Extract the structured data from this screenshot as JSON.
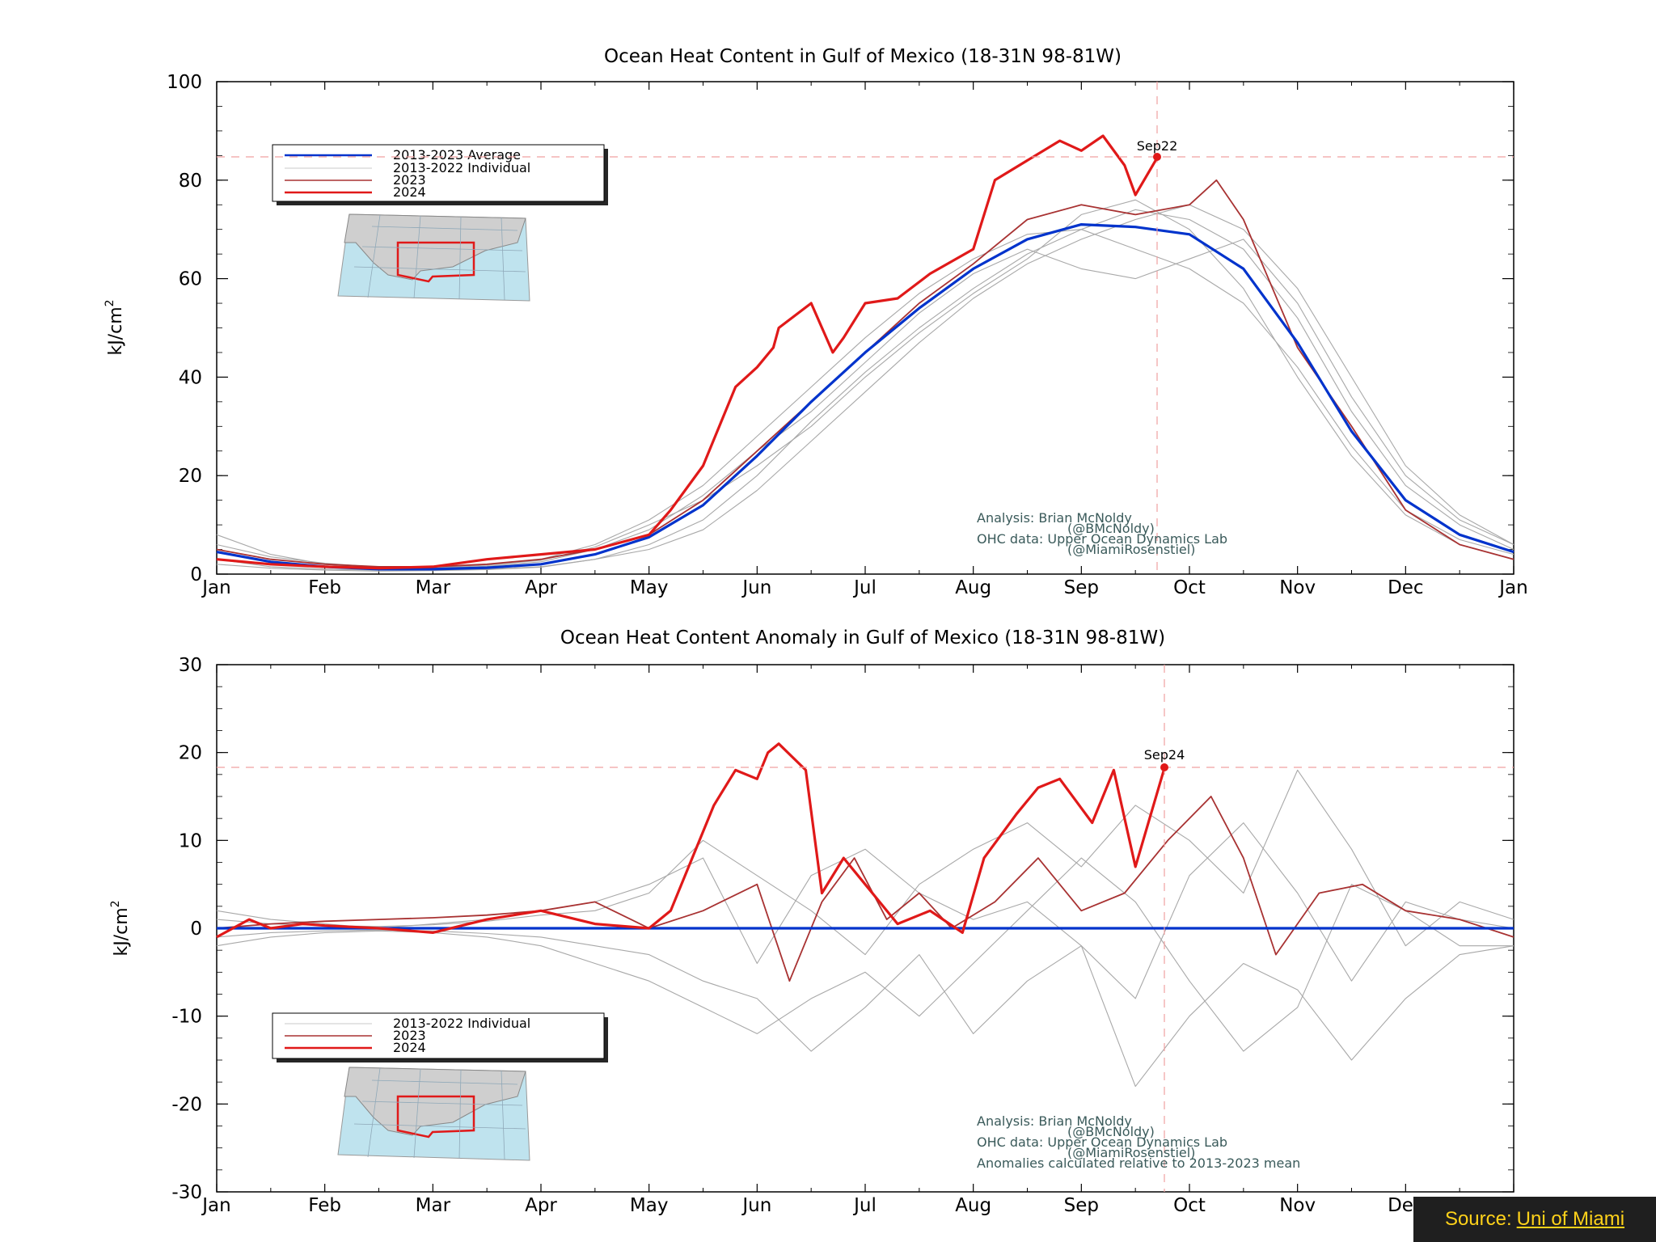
{
  "colors": {
    "average": "#0033cc",
    "individual": "#a8a8a8",
    "y2023": "#a83232",
    "y2024": "#e01919",
    "ref": "#f0a0a0"
  },
  "source": {
    "label": "Source:",
    "link": "Uni of Miami"
  },
  "chart_data": [
    {
      "type": "line",
      "title": "Ocean Heat Content in Gulf of Mexico (18-31N 98-81W)",
      "ylabel": "kJ/cm",
      "ylabel_sup": "2",
      "ylim": [
        0,
        100
      ],
      "yticks": [
        "0",
        "20",
        "40",
        "60",
        "80",
        "100"
      ],
      "xticks": [
        "Jan",
        "Feb",
        "Mar",
        "Apr",
        "May",
        "Jun",
        "Jul",
        "Aug",
        "Sep",
        "Oct",
        "Nov",
        "Dec",
        "Jan"
      ],
      "legend": {
        "placement": "upper-left",
        "entries": [
          "2013-2023 Average",
          "2013-2022 Individual",
          "2023",
          "2024"
        ]
      },
      "marker": {
        "label": "Sep22",
        "x": 8.7,
        "y": 84.5
      },
      "annotation": [
        "Analysis: Brian McNoldy",
        "(@BMcNoldy)",
        "OHC data: Upper Ocean Dynamics Lab",
        "(@MiamiRosenstiel)"
      ],
      "grid": false,
      "series": [
        {
          "name": "2013-2023 Average",
          "style": "average",
          "x": [
            0,
            0.5,
            1,
            1.5,
            2,
            2.5,
            3,
            3.5,
            4,
            4.5,
            5,
            5.5,
            6,
            6.5,
            7,
            7.5,
            8,
            8.5,
            9,
            9.5,
            10,
            10.5,
            11,
            11.5,
            12
          ],
          "y": [
            4.5,
            2.5,
            1.5,
            1.0,
            1.0,
            1.3,
            2.0,
            4.0,
            7.5,
            14,
            24,
            35,
            45,
            54,
            62,
            68,
            71,
            70.5,
            69,
            62,
            47,
            29,
            15,
            8,
            4.5
          ]
        },
        {
          "name": "2013-2022 Individual",
          "style": "individual",
          "x": [
            0,
            0.5,
            1,
            1.5,
            2,
            2.5,
            3,
            3.5,
            4,
            4.5,
            5,
            5.5,
            6,
            6.5,
            7,
            7.5,
            8,
            8.5,
            9,
            9.5,
            10,
            10.5,
            11,
            11.5,
            12
          ],
          "y": [
            8,
            4,
            2,
            1.5,
            1.5,
            2,
            3,
            6,
            11,
            18,
            28,
            38,
            48,
            57,
            64,
            69,
            70,
            66,
            62,
            55,
            42,
            26,
            13,
            7,
            4
          ]
        },
        {
          "name": "2013-2022 Individual",
          "style": "individual",
          "x": [
            0,
            0.5,
            1,
            1.5,
            2,
            2.5,
            3,
            3.5,
            4,
            4.5,
            5,
            5.5,
            6,
            6.5,
            7,
            7.5,
            8,
            8.5,
            9,
            9.5,
            10,
            10.5,
            11,
            11.5,
            12
          ],
          "y": [
            3,
            1.5,
            1,
            0.8,
            0.8,
            1,
            1.5,
            3,
            6,
            11,
            20,
            31,
            41,
            50,
            58,
            65,
            70,
            74,
            72,
            66,
            52,
            33,
            18,
            10,
            5
          ]
        },
        {
          "name": "2013-2022 Individual",
          "style": "individual",
          "x": [
            0,
            0.5,
            1,
            1.5,
            2,
            2.5,
            3,
            3.5,
            4,
            4.5,
            5,
            5.5,
            6,
            6.5,
            7,
            7.5,
            8,
            8.5,
            9,
            9.5,
            10,
            10.5,
            11,
            11.5,
            12
          ],
          "y": [
            5,
            3,
            2,
            1.2,
            1.2,
            1.6,
            2.5,
            5,
            9,
            16,
            25,
            33,
            43,
            53,
            61,
            66,
            62,
            60,
            64,
            68,
            55,
            36,
            20,
            11,
            6
          ]
        },
        {
          "name": "2013-2022 Individual",
          "style": "individual",
          "x": [
            0,
            0.5,
            1,
            1.5,
            2,
            2.5,
            3,
            3.5,
            4,
            4.5,
            5,
            5.5,
            6,
            6.5,
            7,
            7.5,
            8,
            8.5,
            9,
            9.5,
            10,
            10.5,
            11,
            11.5,
            12
          ],
          "y": [
            6,
            3.5,
            2.2,
            1.4,
            1.3,
            1.8,
            2.8,
            5.5,
            10,
            15,
            22,
            30,
            40,
            49,
            57,
            64,
            73,
            76,
            70,
            58,
            40,
            24,
            12,
            6,
            3
          ]
        },
        {
          "name": "2013-2022 Individual",
          "style": "individual",
          "x": [
            0,
            0.5,
            1,
            1.5,
            2,
            2.5,
            3,
            3.5,
            4,
            4.5,
            5,
            5.5,
            6,
            6.5,
            7,
            7.5,
            8,
            8.5,
            9,
            9.5,
            10,
            10.5,
            11,
            11.5,
            12
          ],
          "y": [
            2,
            1.2,
            0.8,
            0.6,
            0.7,
            0.9,
            1.4,
            3,
            5,
            9,
            17,
            27,
            37,
            47,
            56,
            63,
            68,
            72,
            75,
            70,
            58,
            40,
            22,
            12,
            6
          ]
        },
        {
          "name": "2023",
          "style": "y2023",
          "x": [
            0,
            0.5,
            1,
            1.5,
            2,
            2.5,
            3,
            3.5,
            4,
            4.5,
            5,
            5.5,
            6,
            6.5,
            7,
            7.5,
            8,
            8.5,
            9,
            9.25,
            9.5,
            10,
            10.5,
            11,
            11.5,
            12
          ],
          "y": [
            5,
            3,
            2,
            1.5,
            1.5,
            2,
            3,
            5,
            8,
            15,
            25,
            35,
            45,
            55,
            63,
            72,
            75,
            73,
            75,
            80,
            72,
            46,
            30,
            13,
            6,
            3
          ]
        },
        {
          "name": "2024",
          "style": "y2024",
          "x": [
            0,
            0.5,
            1,
            1.5,
            2,
            2.5,
            3,
            3.5,
            4,
            4.2,
            4.5,
            4.8,
            5,
            5.15,
            5.2,
            5.5,
            5.7,
            5.8,
            6,
            6.3,
            6.6,
            7,
            7.2,
            7.5,
            7.8,
            8,
            8.2,
            8.4,
            8.5,
            8.7
          ],
          "y": [
            3,
            2,
            1.5,
            1.2,
            1.5,
            3,
            4,
            5,
            8,
            13,
            22,
            38,
            42,
            46,
            50,
            55,
            45,
            48,
            55,
            56,
            61,
            66,
            80,
            84,
            88,
            86,
            89,
            83,
            77,
            84.5
          ]
        }
      ]
    },
    {
      "type": "line",
      "title": "Ocean Heat Content Anomaly in Gulf of Mexico (18-31N 98-81W)",
      "ylabel": "kJ/cm",
      "ylabel_sup": "2",
      "ylim": [
        -30,
        30
      ],
      "yticks": [
        "-30",
        "-20",
        "-10",
        "0",
        "10",
        "20",
        "30"
      ],
      "xticks": [
        "Jan",
        "Feb",
        "Mar",
        "Apr",
        "May",
        "Jun",
        "Jul",
        "Aug",
        "Sep",
        "Oct",
        "Nov",
        "Dec",
        "Jan"
      ],
      "legend": {
        "placement": "lower-left",
        "entries": [
          "2013-2022 Individual",
          "2023",
          "2024"
        ]
      },
      "marker": {
        "label": "Sep24",
        "x": 8.77,
        "y": 18.3
      },
      "annotation": [
        "Analysis: Brian McNoldy",
        "(@BMcNoldy)",
        "OHC data: Upper Ocean Dynamics Lab",
        "(@MiamiRosenstiel)",
        "Anomalies calculated relative to 2013-2023 mean"
      ],
      "grid": false,
      "series": [
        {
          "name": "zero",
          "style": "average",
          "x": [
            0,
            12
          ],
          "y": [
            0,
            0
          ]
        },
        {
          "name": "2013-2022 Individual",
          "style": "individual",
          "x": [
            0,
            0.5,
            1,
            1.5,
            2,
            2.5,
            3,
            3.5,
            4,
            4.5,
            5,
            5.5,
            6,
            6.5,
            7,
            7.5,
            8,
            8.5,
            9,
            9.5,
            10,
            10.5,
            11,
            11.5,
            12
          ],
          "y": [
            2,
            1,
            0.5,
            0,
            0.5,
            1,
            2,
            3,
            5,
            8,
            -4,
            6,
            9,
            4,
            1,
            3,
            -2,
            -8,
            6,
            12,
            4,
            -6,
            3,
            1,
            0
          ]
        },
        {
          "name": "2013-2022 Individual",
          "style": "individual",
          "x": [
            0,
            0.5,
            1,
            1.5,
            2,
            2.5,
            3,
            3.5,
            4,
            4.5,
            5,
            5.5,
            6,
            6.5,
            7,
            7.5,
            8,
            8.5,
            9,
            9.5,
            10,
            10.5,
            11,
            11.5,
            12
          ],
          "y": [
            -2,
            -1,
            -0.5,
            -0.3,
            -0.5,
            -1,
            -2,
            -4,
            -6,
            -9,
            -12,
            -8,
            -5,
            -10,
            -4,
            2,
            8,
            3,
            -6,
            -14,
            -9,
            5,
            2,
            -2,
            -2
          ]
        },
        {
          "name": "2013-2022 Individual",
          "style": "individual",
          "x": [
            0,
            0.5,
            1,
            1.5,
            2,
            2.5,
            3,
            3.5,
            4,
            4.5,
            5,
            5.5,
            6,
            6.5,
            7,
            7.5,
            8,
            8.5,
            9,
            9.5,
            10,
            10.5,
            11,
            11.5,
            12
          ],
          "y": [
            1,
            0.5,
            0.3,
            0.2,
            0.4,
            0.8,
            1.5,
            2,
            4,
            10,
            6,
            2,
            -3,
            5,
            9,
            12,
            7,
            14,
            10,
            4,
            18,
            9,
            -2,
            3,
            1
          ]
        },
        {
          "name": "2013-2022 Individual",
          "style": "individual",
          "x": [
            0,
            0.5,
            1,
            1.5,
            2,
            2.5,
            3,
            3.5,
            4,
            4.5,
            5,
            5.5,
            6,
            6.5,
            7,
            7.5,
            8,
            8.5,
            9,
            9.5,
            10,
            10.5,
            11,
            11.5,
            12
          ],
          "y": [
            -1,
            -0.5,
            -0.3,
            -0.2,
            -0.3,
            -0.6,
            -1,
            -2,
            -3,
            -6,
            -8,
            -14,
            -9,
            -3,
            -12,
            -6,
            -2,
            -18,
            -10,
            -4,
            -7,
            -15,
            -8,
            -3,
            -2
          ]
        },
        {
          "name": "2023",
          "style": "y2023",
          "x": [
            0,
            0.5,
            1,
            1.5,
            2,
            2.5,
            3,
            3.5,
            4,
            4.5,
            5,
            5.3,
            5.6,
            5.9,
            6.2,
            6.5,
            6.8,
            7.2,
            7.6,
            8,
            8.4,
            8.8,
            9.2,
            9.5,
            9.8,
            10.2,
            10.6,
            11,
            11.5,
            12
          ],
          "y": [
            0,
            0.5,
            0.8,
            1,
            1.2,
            1.5,
            2,
            3,
            0,
            2,
            5,
            -6,
            3,
            8,
            1,
            4,
            0,
            3,
            8,
            2,
            4,
            10,
            15,
            8,
            -3,
            4,
            5,
            2,
            1,
            -1
          ]
        },
        {
          "name": "2024",
          "style": "y2024",
          "x": [
            0,
            0.3,
            0.5,
            0.8,
            1,
            1.5,
            2,
            2.5,
            3,
            3.5,
            4,
            4.2,
            4.4,
            4.6,
            4.8,
            5,
            5.1,
            5.2,
            5.45,
            5.6,
            5.8,
            6,
            6.3,
            6.6,
            6.9,
            7.1,
            7.4,
            7.6,
            7.8,
            8.1,
            8.3,
            8.5,
            8.77
          ],
          "y": [
            -1,
            1,
            0,
            0.5,
            0.3,
            0,
            -0.5,
            1,
            2,
            0.5,
            0,
            2,
            8,
            14,
            18,
            17,
            20,
            21,
            18,
            4,
            8,
            5,
            0.5,
            2,
            -0.5,
            8,
            13,
            16,
            17,
            12,
            18,
            7,
            18.3
          ]
        }
      ]
    }
  ]
}
